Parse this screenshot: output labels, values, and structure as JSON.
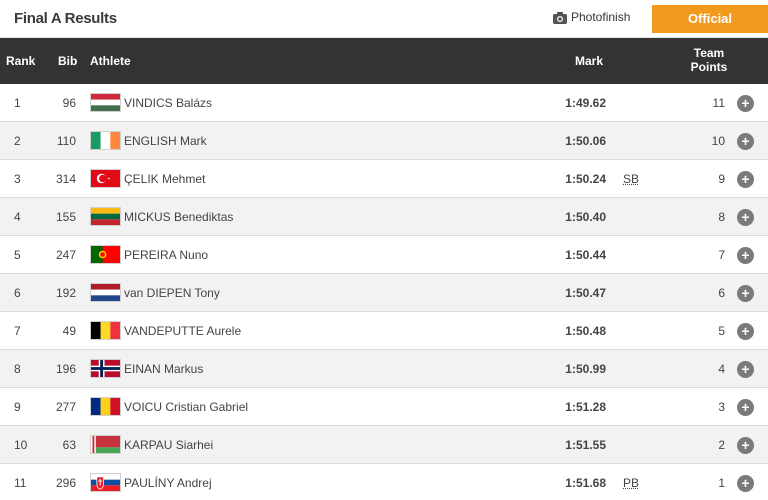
{
  "header": {
    "title": "Final A Results",
    "photofinish_label": "Photofinish",
    "official_label": "Official",
    "accent_color": "#f39a1e"
  },
  "columns": {
    "rank": "Rank",
    "bib": "Bib",
    "athlete": "Athlete",
    "mark": "Mark",
    "team_points_1": "Team",
    "team_points_2": "Points"
  },
  "rows": [
    {
      "rank": "1",
      "bib": "96",
      "flag": "hungary-flag-icon",
      "athlete": "VINDICS Balázs",
      "mark": "1:49.62",
      "note": "",
      "points": "11"
    },
    {
      "rank": "2",
      "bib": "110",
      "flag": "ireland-flag-icon",
      "athlete": "ENGLISH Mark",
      "mark": "1:50.06",
      "note": "",
      "points": "10"
    },
    {
      "rank": "3",
      "bib": "314",
      "flag": "turkey-flag-icon",
      "athlete": "ÇELIK Mehmet",
      "mark": "1:50.24",
      "note": "SB",
      "points": "9"
    },
    {
      "rank": "4",
      "bib": "155",
      "flag": "lithuania-flag-icon",
      "athlete": "MICKUS Benediktas",
      "mark": "1:50.40",
      "note": "",
      "points": "8"
    },
    {
      "rank": "5",
      "bib": "247",
      "flag": "portugal-flag-icon",
      "athlete": "PEREIRA Nuno",
      "mark": "1:50.44",
      "note": "",
      "points": "7"
    },
    {
      "rank": "6",
      "bib": "192",
      "flag": "netherlands-flag-icon",
      "athlete": "van DIEPEN Tony",
      "mark": "1:50.47",
      "note": "",
      "points": "6"
    },
    {
      "rank": "7",
      "bib": "49",
      "flag": "belgium-flag-icon",
      "athlete": "VANDEPUTTE Aurele",
      "mark": "1:50.48",
      "note": "",
      "points": "5"
    },
    {
      "rank": "8",
      "bib": "196",
      "flag": "norway-flag-icon",
      "athlete": "EINAN Markus",
      "mark": "1:50.99",
      "note": "",
      "points": "4"
    },
    {
      "rank": "9",
      "bib": "277",
      "flag": "romania-flag-icon",
      "athlete": "VOICU Cristian Gabriel",
      "mark": "1:51.28",
      "note": "",
      "points": "3"
    },
    {
      "rank": "10",
      "bib": "63",
      "flag": "belarus-flag-icon",
      "athlete": "KARPAU Siarhei",
      "mark": "1:51.55",
      "note": "",
      "points": "2"
    },
    {
      "rank": "11",
      "bib": "296",
      "flag": "slovakia-flag-icon",
      "athlete": "PAULÍNY Andrej",
      "mark": "1:51.68",
      "note": "PB",
      "points": "1"
    }
  ]
}
